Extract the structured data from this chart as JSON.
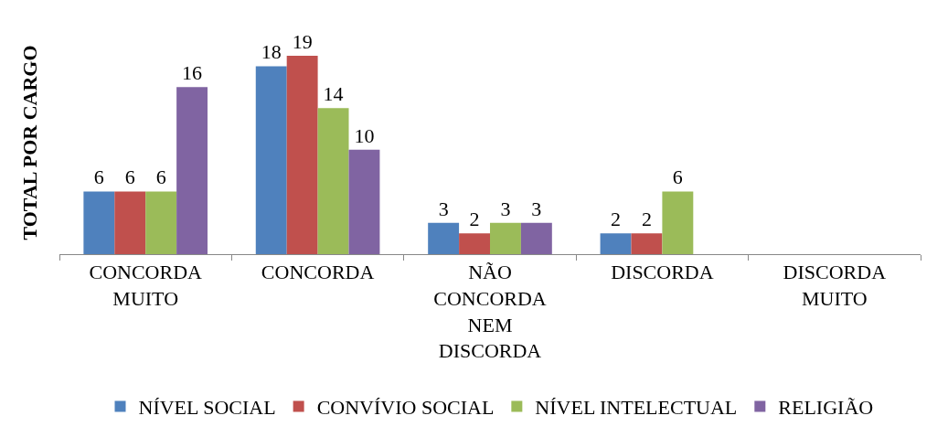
{
  "chart_data": {
    "type": "bar",
    "ylabel": "TOTAL POR CARGO",
    "categories": [
      "CONCORDA MUITO",
      "CONCORDA",
      "NÃO CONCORDA NEM DISCORDA",
      "DISCORDA",
      "DISCORDA MUITO"
    ],
    "series": [
      {
        "name": "NÍVEL SOCIAL",
        "color": "#4f81bd",
        "values": [
          6,
          18,
          3,
          2,
          null
        ]
      },
      {
        "name": "CONVÍVIO SOCIAL",
        "color": "#c0504d",
        "values": [
          6,
          19,
          2,
          2,
          null
        ]
      },
      {
        "name": "NÍVEL INTELECTUAL",
        "color": "#9bbb59",
        "values": [
          6,
          14,
          3,
          6,
          null
        ]
      },
      {
        "name": "RELIGIÃO",
        "color": "#8064a2",
        "values": [
          16,
          10,
          3,
          null,
          null
        ]
      }
    ],
    "data_labels": true,
    "legend": "bottom"
  }
}
